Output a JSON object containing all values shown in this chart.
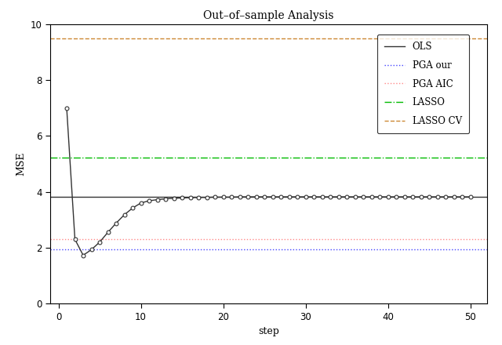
{
  "title": "Out–of–sample Analysis",
  "xlabel": "step",
  "ylabel": "MSE",
  "xlim": [
    -1,
    52
  ],
  "ylim": [
    0,
    10
  ],
  "xticks": [
    0,
    10,
    20,
    30,
    40,
    50
  ],
  "yticks": [
    0,
    2,
    4,
    6,
    8,
    10
  ],
  "ols_hline": 3.82,
  "pga_our_hline": 1.95,
  "pga_aic_hline": 2.3,
  "lasso_hline": 5.22,
  "lasso_cv_hline": 9.48,
  "ols_color": "#333333",
  "pga_our_color": "#4444FF",
  "pga_aic_color": "#FF8888",
  "lasso_color": "#00BB00",
  "lasso_cv_color": "#CC8833",
  "curve_points_x": [
    1,
    2,
    3,
    4,
    5,
    6,
    7,
    8,
    9,
    10,
    11,
    12,
    13,
    14,
    15,
    16,
    17,
    18,
    19,
    20,
    21,
    22,
    23,
    24,
    25,
    26,
    27,
    28,
    29,
    30,
    31,
    32,
    33,
    34,
    35,
    36,
    37,
    38,
    39,
    40,
    41,
    42,
    43,
    44,
    45,
    46,
    47,
    48,
    49,
    50
  ],
  "curve_points_y": [
    7.0,
    2.3,
    1.73,
    1.93,
    2.2,
    2.55,
    2.88,
    3.18,
    3.42,
    3.6,
    3.68,
    3.72,
    3.75,
    3.77,
    3.78,
    3.79,
    3.8,
    3.8,
    3.81,
    3.81,
    3.81,
    3.82,
    3.82,
    3.82,
    3.82,
    3.82,
    3.82,
    3.82,
    3.82,
    3.82,
    3.82,
    3.82,
    3.82,
    3.82,
    3.82,
    3.82,
    3.82,
    3.82,
    3.82,
    3.82,
    3.82,
    3.82,
    3.82,
    3.82,
    3.82,
    3.82,
    3.82,
    3.82,
    3.82,
    3.82
  ],
  "legend_labels": [
    "OLS",
    "PGA our",
    "PGA AIC",
    "LASSO",
    "LASSO CV"
  ],
  "background_color": "#FFFFFF",
  "plot_bg_color": "#FFFFFF",
  "title_fontsize": 10,
  "axis_fontsize": 9,
  "tick_fontsize": 8.5
}
